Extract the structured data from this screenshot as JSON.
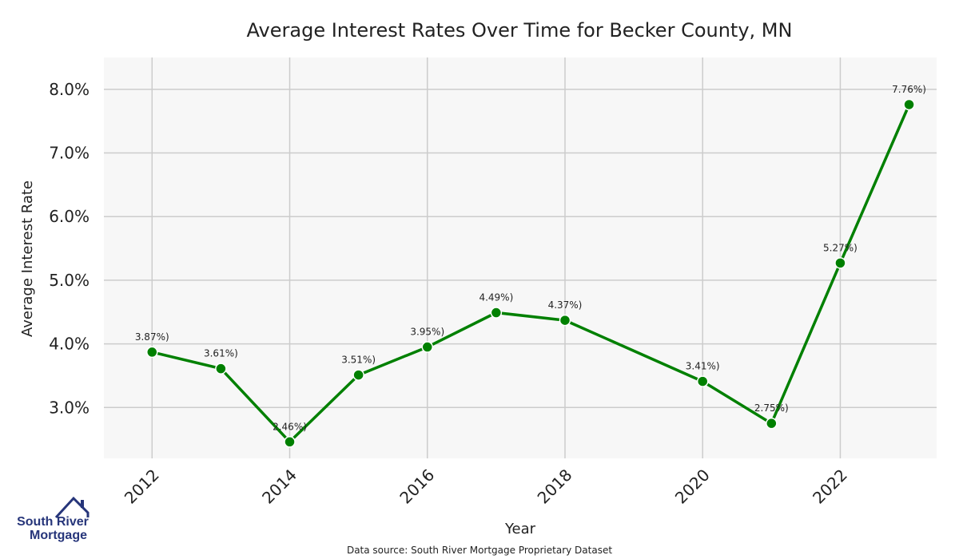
{
  "chart_data": {
    "type": "line",
    "title": "Average Interest Rates Over Time for Becker County, MN",
    "xlabel": "Year",
    "ylabel": "Average Interest Rate",
    "x": [
      2012,
      2013,
      2014,
      2015,
      2016,
      2017,
      2018,
      2020,
      2021,
      2022,
      2023
    ],
    "series": [
      {
        "values": [
          3.87,
          3.61,
          2.46,
          3.51,
          3.95,
          4.49,
          4.37,
          3.41,
          2.75,
          5.27,
          7.76
        ],
        "labels": [
          "3.87%)",
          "3.61%)",
          "2.46%)",
          "3.51%)",
          "3.95%)",
          "4.49%)",
          "4.37%)",
          "3.41%)",
          "2.75%)",
          "5.27%)",
          "7.76%)"
        ],
        "color": "#008000"
      }
    ],
    "xticks": [
      "2012",
      "2014",
      "2016",
      "2018",
      "2020",
      "2022"
    ],
    "yticks": [
      "3.0%",
      "4.0%",
      "5.0%",
      "6.0%",
      "7.0%",
      "8.0%"
    ],
    "ylim": [
      2.2,
      8.5
    ],
    "xlim": [
      2011.3,
      2023.4
    ],
    "grid": true,
    "background": "#f7f7f7",
    "grid_color": "#cccccc"
  },
  "source_note": "Data source: South River Mortgage Proprietary Dataset",
  "logo": {
    "line1": "South River",
    "line2": "Mortgage",
    "color": "#26357a"
  }
}
